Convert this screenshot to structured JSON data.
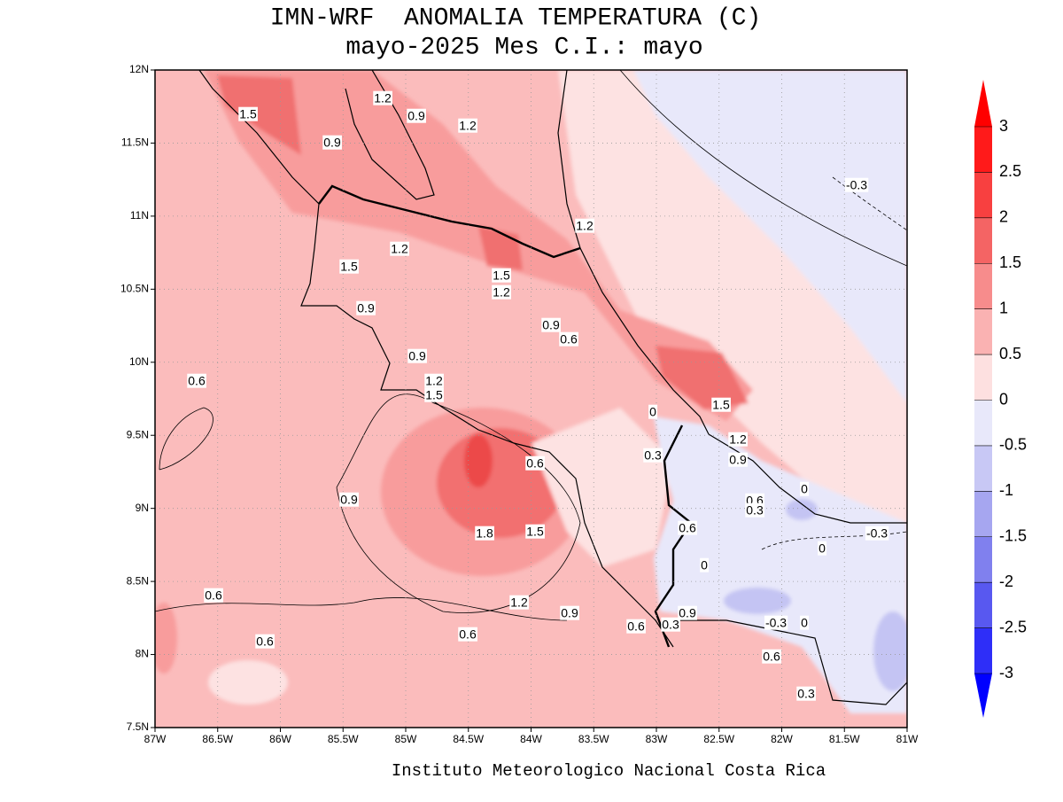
{
  "header": {
    "title": "IMN-WRF  ANOMALIA TEMPERATURA (C)",
    "subtitle": "mayo-2025 Mes C.I.: mayo"
  },
  "map": {
    "xticks": [
      "87W",
      "86.5W",
      "86W",
      "85.5W",
      "85W",
      "84.5W",
      "84W",
      "83.5W",
      "83W",
      "82.5W",
      "82W",
      "81.5W",
      "81W"
    ],
    "yticks": [
      "12N",
      "11.5N",
      "11N",
      "10.5N",
      "10N",
      "9.5N",
      "9N",
      "8.5N",
      "8N",
      "7.5N"
    ]
  },
  "colorbar": {
    "labels": [
      "3",
      "2.5",
      "2",
      "1.5",
      "1",
      "0.5",
      "0",
      "-0.5",
      "-1",
      "-1.5",
      "-2",
      "-2.5",
      "-3"
    ]
  },
  "contour_labels": [
    "1.5",
    "1.2",
    "0.9",
    "1.2",
    "0.9",
    "-0.3",
    "1.2",
    "1.2",
    "1.5",
    "1.5",
    "1.2",
    "0.9",
    "0.9",
    "0.6",
    "0.9",
    "0.6",
    "1.2",
    "1.5",
    "1.5",
    "0",
    "1.2",
    "0.3",
    "0.9",
    "0.6",
    "0.6",
    "0.3",
    "0",
    "0.9",
    "1.8",
    "1.5",
    "0.6",
    "-0.3",
    "0",
    "0",
    "0.6",
    "1.2",
    "0.9",
    "0.9",
    "-0.3",
    "0",
    "0.6",
    "0.3",
    "0.6",
    "0.6",
    "0.6",
    "0.3"
  ],
  "footer": "Instituto Meteorologico Nacional Costa Rica"
}
